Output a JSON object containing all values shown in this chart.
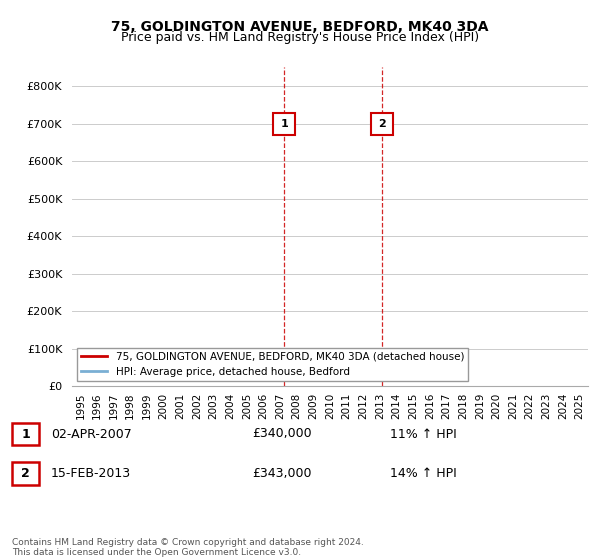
{
  "title": "75, GOLDINGTON AVENUE, BEDFORD, MK40 3DA",
  "subtitle": "Price paid vs. HM Land Registry's House Price Index (HPI)",
  "ylabel_ticks": [
    "£0",
    "£100K",
    "£200K",
    "£300K",
    "£400K",
    "£500K",
    "£600K",
    "£700K",
    "£800K"
  ],
  "ytick_values": [
    0,
    100000,
    200000,
    300000,
    400000,
    500000,
    600000,
    700000,
    800000
  ],
  "ylim": [
    0,
    850000
  ],
  "xlim_start": 1994.5,
  "xlim_end": 2025.5,
  "xticks": [
    1995,
    1996,
    1997,
    1998,
    1999,
    2000,
    2001,
    2002,
    2003,
    2004,
    2005,
    2006,
    2007,
    2008,
    2009,
    2010,
    2011,
    2012,
    2013,
    2014,
    2015,
    2016,
    2017,
    2018,
    2019,
    2020,
    2021,
    2022,
    2023,
    2024,
    2025
  ],
  "red_line_color": "#cc0000",
  "blue_line_color": "#7aafd4",
  "fill_color": "#c8ddf0",
  "grid_color": "#cccccc",
  "sale1_x": 2007.25,
  "sale1_y": 340000,
  "sale2_x": 2013.1,
  "sale2_y": 343000,
  "sale1_label": "1",
  "sale2_label": "2",
  "sale1_date": "02-APR-2007",
  "sale1_price": "£340,000",
  "sale1_hpi": "11% ↑ HPI",
  "sale2_date": "15-FEB-2013",
  "sale2_price": "£343,000",
  "sale2_hpi": "14% ↑ HPI",
  "legend_line1": "75, GOLDINGTON AVENUE, BEDFORD, MK40 3DA (detached house)",
  "legend_line2": "HPI: Average price, detached house, Bedford",
  "footnote": "Contains HM Land Registry data © Crown copyright and database right 2024.\nThis data is licensed under the Open Government Licence v3.0.",
  "background_color": "#ffffff"
}
